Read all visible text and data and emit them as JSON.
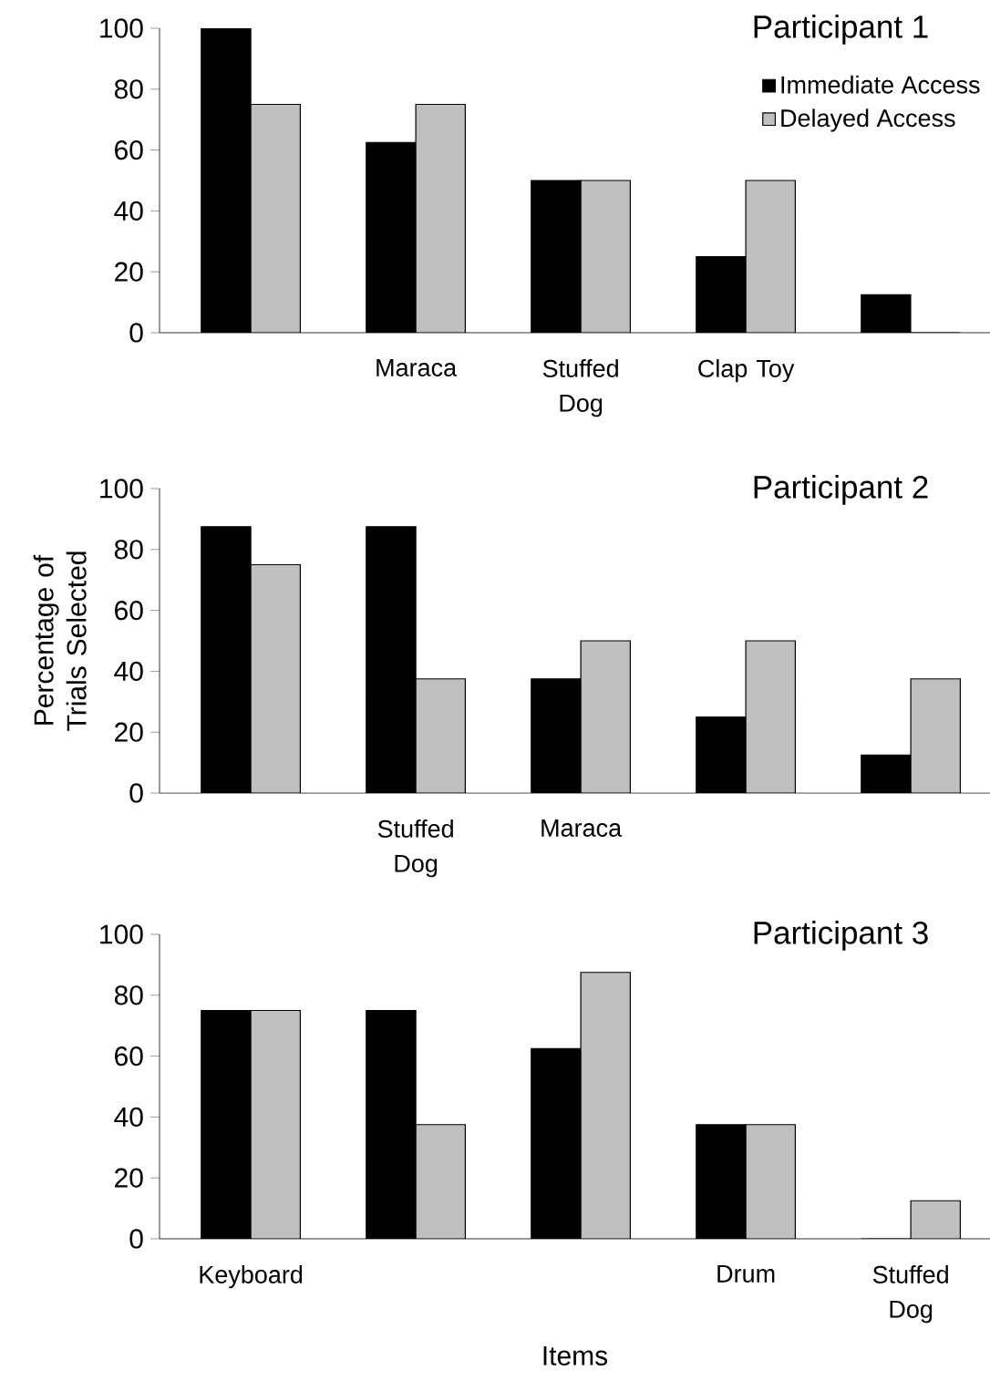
{
  "chart_data": [
    {
      "type": "bar",
      "title": "Participant 1",
      "categories": [
        null,
        "Maraca",
        "Stuffed Dog",
        "Clap Toy",
        null
      ],
      "series": [
        {
          "name": "Immediate Access",
          "color": "#000000",
          "values": [
            100,
            62.5,
            50,
            25,
            12.5
          ]
        },
        {
          "name": "Delayed Access",
          "color": "#bfbfbf",
          "values": [
            75,
            75,
            50,
            50,
            0
          ]
        }
      ],
      "ylim": [
        0,
        100
      ],
      "yticks": [
        0,
        20,
        40,
        60,
        80,
        100
      ],
      "legend": "top right",
      "grid": false
    },
    {
      "type": "bar",
      "title": "Participant 2",
      "ylabel": "Percentage of Trials Selected",
      "categories": [
        null,
        "Stuffed Dog",
        "Maraca",
        null,
        null
      ],
      "series": [
        {
          "color": "#000000",
          "values": [
            87.5,
            87.5,
            37.5,
            25,
            12.5
          ]
        },
        {
          "color": "#bfbfbf",
          "values": [
            75,
            37.5,
            50,
            50,
            37.5
          ]
        }
      ],
      "ylim": [
        0,
        100
      ],
      "yticks": [
        0,
        20,
        40,
        60,
        80,
        100
      ],
      "grid": false
    },
    {
      "type": "bar",
      "title": "Participant 3",
      "xlabel": "Items",
      "categories": [
        "Keyboard",
        null,
        null,
        "Drum",
        "Stuffed Dog"
      ],
      "series": [
        {
          "color": "#000000",
          "values": [
            75,
            75,
            62.5,
            37.5,
            0
          ]
        },
        {
          "color": "#bfbfbf",
          "values": [
            75,
            37.5,
            87.5,
            37.5,
            12.5
          ]
        }
      ],
      "ylim": [
        0,
        100
      ],
      "yticks": [
        0,
        20,
        40,
        60,
        80,
        100
      ],
      "grid": false
    }
  ]
}
